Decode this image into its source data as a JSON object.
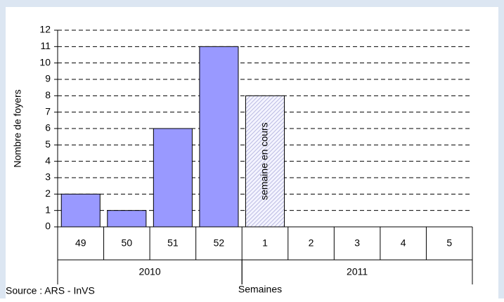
{
  "chart_data": {
    "type": "bar",
    "categories": [
      "49",
      "50",
      "51",
      "52",
      "1",
      "2",
      "3",
      "4",
      "5"
    ],
    "values": [
      2,
      1,
      6,
      11,
      8,
      null,
      null,
      null,
      null
    ],
    "color": "#9999ff",
    "groups": [
      {
        "label": "2010",
        "span": 4
      },
      {
        "label": "2011",
        "span": 5
      }
    ],
    "annotation": {
      "text": "semaine en cours",
      "category_index": 4
    },
    "ylim": [
      0,
      12
    ],
    "yticks": [
      0,
      1,
      2,
      3,
      4,
      5,
      6,
      7,
      8,
      9,
      10,
      11,
      12
    ],
    "grid": true,
    "ylabel": "Nombre de foyers",
    "xlabel": "Semaines",
    "source": "Source : ARS - InVS"
  }
}
